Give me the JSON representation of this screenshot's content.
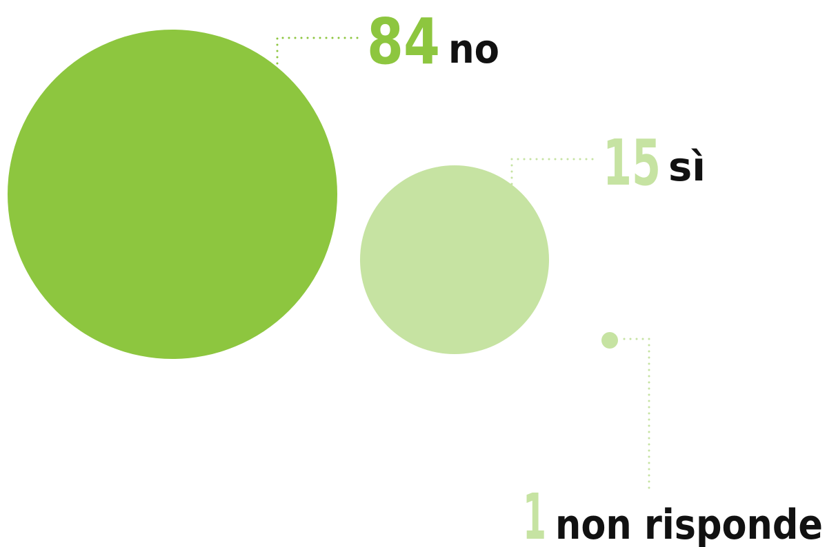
{
  "chart_data": {
    "type": "bubble",
    "title": "",
    "unit": "%",
    "items": [
      {
        "value": 84,
        "label": "no",
        "color": "#8dc63f"
      },
      {
        "value": 15,
        "label": "sì",
        "color": "#c6e3a2"
      },
      {
        "value": 1,
        "label": "non risponde",
        "color": "#c6e3a2"
      }
    ]
  }
}
